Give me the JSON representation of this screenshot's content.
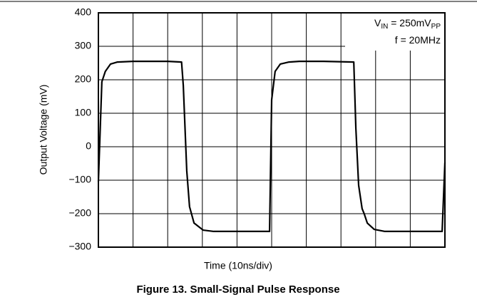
{
  "chart_data": {
    "type": "line",
    "title": "Figure 13. Small-Signal Pulse Response",
    "xlabel": "Time (10ns/div)",
    "ylabel": "Output Voltage (mV)",
    "annotations": [
      [
        "V",
        "IN",
        " = 250mV",
        "PP"
      ],
      [
        "f = 20MHz"
      ]
    ],
    "xlim": [
      0,
      100
    ],
    "xticks": [
      0,
      10,
      20,
      30,
      40,
      50,
      60,
      70,
      80,
      90,
      100
    ],
    "ylim": [
      -300,
      400
    ],
    "yticks": [
      {
        "value": -300,
        "label": "−300"
      },
      {
        "value": -200,
        "label": "−200"
      },
      {
        "value": -100,
        "label": "−100"
      },
      0,
      100,
      200,
      300,
      400
    ],
    "grid": true,
    "x": [
      0,
      1,
      2,
      3.5,
      5.5,
      10,
      20,
      24,
      24.5,
      25.5,
      26.3,
      27.6,
      30.2,
      33.3,
      40,
      49.4,
      50,
      51,
      52.5,
      55,
      58,
      65,
      73.7,
      74.3,
      75.1,
      76.1,
      76.7,
      77.6,
      79.6,
      82.7,
      90,
      99.2,
      100
    ],
    "series": [
      {
        "name": "Output",
        "color": "#000000",
        "values": [
          -104,
          194,
          225,
          247,
          253,
          255,
          255,
          253,
          183,
          -72,
          -179,
          -228,
          -249,
          -253,
          -253,
          -253,
          140,
          225,
          247,
          253,
          255,
          255,
          253,
          55,
          -115,
          -185,
          -200,
          -228,
          -247,
          -253,
          -253,
          -253,
          -47
        ]
      }
    ]
  }
}
